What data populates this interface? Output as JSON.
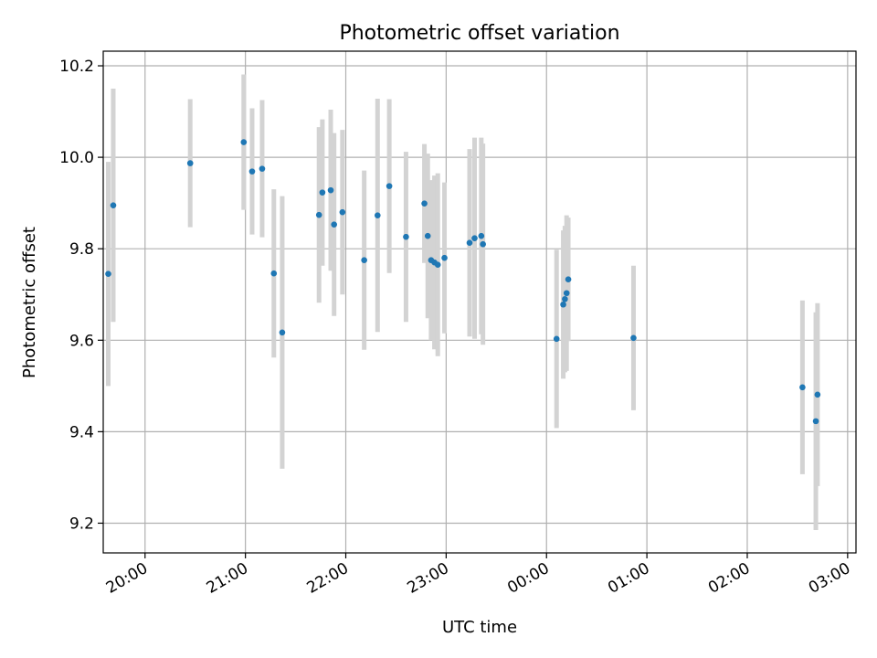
{
  "chart_data": {
    "type": "scatter",
    "title": "Photometric offset variation",
    "xlabel": "UTC time",
    "ylabel": "Photometric offset",
    "x_tick_labels": [
      "20:00",
      "21:00",
      "22:00",
      "23:00",
      "00:00",
      "01:00",
      "02:00",
      "03:00"
    ],
    "y_tick_labels": [
      "9.2",
      "9.4",
      "9.6",
      "9.8",
      "10.0",
      "10.2"
    ],
    "x_range": [
      "19:35",
      "03:05"
    ],
    "ylim": [
      9.135,
      10.232
    ],
    "grid": true,
    "colors": {
      "point": "#1f77b4",
      "errorbar": "#d3d3d3",
      "grid": "#b0b0b0"
    },
    "points": [
      {
        "x": "19:38",
        "y": 9.745,
        "err": 0.245
      },
      {
        "x": "19:41",
        "y": 9.895,
        "err": 0.255
      },
      {
        "x": "20:27",
        "y": 9.987,
        "err": 0.14
      },
      {
        "x": "20:59",
        "y": 10.033,
        "err": 0.148
      },
      {
        "x": "21:04",
        "y": 9.969,
        "err": 0.138
      },
      {
        "x": "21:10",
        "y": 9.975,
        "err": 0.15
      },
      {
        "x": "21:17",
        "y": 9.746,
        "err": 0.184
      },
      {
        "x": "21:22",
        "y": 9.617,
        "err": 0.298
      },
      {
        "x": "21:44",
        "y": 9.874,
        "err": 0.192
      },
      {
        "x": "21:46",
        "y": 9.923,
        "err": 0.16
      },
      {
        "x": "21:51",
        "y": 9.928,
        "err": 0.176
      },
      {
        "x": "21:53",
        "y": 9.853,
        "err": 0.2
      },
      {
        "x": "21:58",
        "y": 9.88,
        "err": 0.18
      },
      {
        "x": "22:11",
        "y": 9.775,
        "err": 0.196
      },
      {
        "x": "22:19",
        "y": 9.873,
        "err": 0.255
      },
      {
        "x": "22:26",
        "y": 9.937,
        "err": 0.19
      },
      {
        "x": "22:36",
        "y": 9.826,
        "err": 0.186
      },
      {
        "x": "22:47",
        "y": 9.899,
        "err": 0.13
      },
      {
        "x": "22:49",
        "y": 9.828,
        "err": 0.18
      },
      {
        "x": "22:51",
        "y": 9.775,
        "err": 0.175
      },
      {
        "x": "22:53",
        "y": 9.77,
        "err": 0.19
      },
      {
        "x": "22:55",
        "y": 9.765,
        "err": 0.2
      },
      {
        "x": "22:59",
        "y": 9.78,
        "err": 0.165
      },
      {
        "x": "23:14",
        "y": 9.813,
        "err": 0.205
      },
      {
        "x": "23:17",
        "y": 9.823,
        "err": 0.22
      },
      {
        "x": "23:21",
        "y": 9.828,
        "err": 0.215
      },
      {
        "x": "23:22",
        "y": 9.81,
        "err": 0.22
      },
      {
        "x": "00:06",
        "y": 9.603,
        "err": 0.195
      },
      {
        "x": "00:10",
        "y": 9.678,
        "err": 0.162
      },
      {
        "x": "00:11",
        "y": 9.69,
        "err": 0.16
      },
      {
        "x": "00:12",
        "y": 9.703,
        "err": 0.17
      },
      {
        "x": "00:13",
        "y": 9.733,
        "err": 0.135
      },
      {
        "x": "00:52",
        "y": 9.605,
        "err": 0.158
      },
      {
        "x": "02:33",
        "y": 9.497,
        "err": 0.19
      },
      {
        "x": "02:41",
        "y": 9.423,
        "err": 0.238
      },
      {
        "x": "02:42",
        "y": 9.481,
        "err": 0.2
      }
    ]
  }
}
